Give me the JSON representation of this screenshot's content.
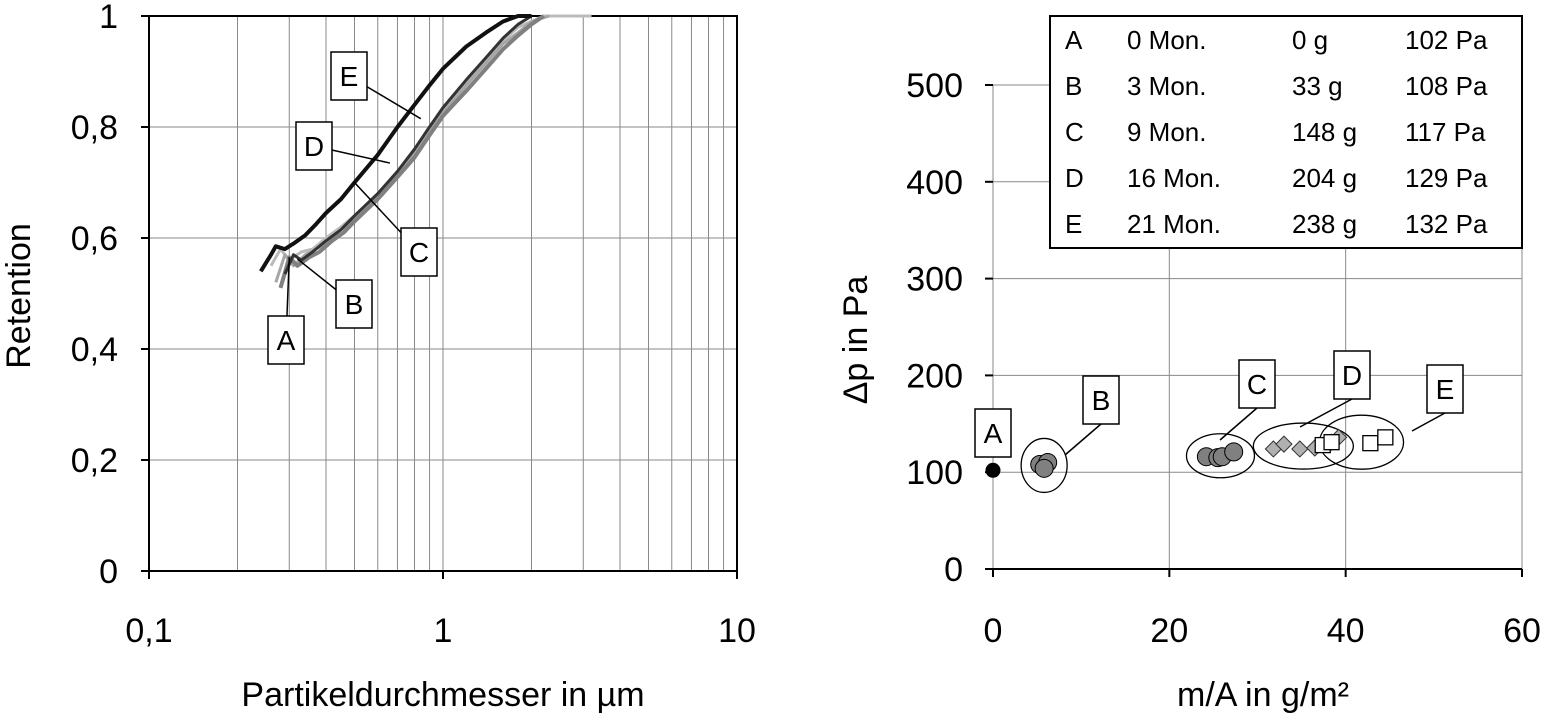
{
  "chart_data": [
    {
      "type": "line",
      "xlabel": "Partikeldurchmesser in µm",
      "ylabel": "Retention",
      "x_scale": "log",
      "xlim": [
        0.1,
        10
      ],
      "ylim": [
        0,
        1
      ],
      "grid": true,
      "x_tick_labels": [
        "0,1",
        "1",
        "10"
      ],
      "y_tick_labels": [
        "0",
        "0,2",
        "0,4",
        "0,6",
        "0,8",
        "1"
      ],
      "series": [
        {
          "label": "A",
          "color": "#bbbbbb",
          "width": 3,
          "x": [
            0.26,
            0.28,
            0.3,
            0.33,
            0.36,
            0.4,
            0.45,
            0.5,
            0.6,
            0.7,
            0.8,
            0.9,
            1.0,
            1.2,
            1.4,
            1.6,
            1.8,
            2.0,
            2.2,
            2.5,
            3.2
          ],
          "y": [
            0.55,
            0.58,
            0.56,
            0.575,
            0.58,
            0.6,
            0.62,
            0.64,
            0.68,
            0.72,
            0.76,
            0.8,
            0.83,
            0.88,
            0.92,
            0.955,
            0.98,
            0.99,
            1.0,
            1.0,
            1.0
          ]
        },
        {
          "label": "B",
          "color": "#a6a6a6",
          "width": 3,
          "x": [
            0.27,
            0.29,
            0.31,
            0.34,
            0.37,
            0.4,
            0.45,
            0.5,
            0.6,
            0.7,
            0.8,
            0.9,
            1.0,
            1.2,
            1.4,
            1.6,
            1.8,
            2.0,
            2.3
          ],
          "y": [
            0.52,
            0.57,
            0.55,
            0.57,
            0.58,
            0.59,
            0.615,
            0.635,
            0.675,
            0.715,
            0.755,
            0.795,
            0.825,
            0.875,
            0.915,
            0.95,
            0.97,
            0.99,
            1.0
          ]
        },
        {
          "label": "C",
          "color": "#808080",
          "width": 4,
          "x": [
            0.28,
            0.3,
            0.32,
            0.35,
            0.38,
            0.42,
            0.46,
            0.5,
            0.6,
            0.7,
            0.8,
            0.9,
            1.0,
            1.2,
            1.4,
            1.6,
            1.8,
            2.0,
            2.2
          ],
          "y": [
            0.51,
            0.565,
            0.55,
            0.565,
            0.575,
            0.595,
            0.61,
            0.63,
            0.67,
            0.71,
            0.745,
            0.785,
            0.82,
            0.865,
            0.905,
            0.94,
            0.965,
            0.985,
            1.0
          ]
        },
        {
          "label": "D",
          "color": "#333333",
          "width": 3,
          "x": [
            0.29,
            0.31,
            0.33,
            0.36,
            0.4,
            0.45,
            0.5,
            0.6,
            0.7,
            0.8,
            0.9,
            1.0,
            1.2,
            1.4,
            1.6,
            1.8,
            2.0
          ],
          "y": [
            0.535,
            0.57,
            0.56,
            0.575,
            0.595,
            0.615,
            0.64,
            0.68,
            0.72,
            0.76,
            0.8,
            0.835,
            0.885,
            0.925,
            0.96,
            0.985,
            1.0
          ]
        },
        {
          "label": "E",
          "color": "#111111",
          "width": 4,
          "x": [
            0.24,
            0.26,
            0.27,
            0.29,
            0.31,
            0.34,
            0.37,
            0.4,
            0.45,
            0.5,
            0.6,
            0.7,
            0.8,
            0.9,
            1.0,
            1.2,
            1.4,
            1.6,
            1.8,
            2.0
          ],
          "y": [
            0.54,
            0.57,
            0.585,
            0.58,
            0.59,
            0.605,
            0.625,
            0.645,
            0.67,
            0.7,
            0.75,
            0.8,
            0.84,
            0.875,
            0.905,
            0.945,
            0.97,
            0.99,
            1.0,
            1.0
          ]
        }
      ],
      "annotations": [
        {
          "label": "A",
          "x": 0.3,
          "y": 0.5654
        },
        {
          "label": "B",
          "x": 0.32,
          "y": 0.562
        },
        {
          "label": "C",
          "x": 0.5,
          "y": 0.7
        },
        {
          "label": "D",
          "x": 0.66,
          "y": 0.735
        },
        {
          "label": "E",
          "x": 0.84,
          "y": 0.815
        }
      ]
    },
    {
      "type": "scatter",
      "xlabel": "m/A in g/m²",
      "ylabel": "Δp in Pa",
      "xlim": [
        0,
        60
      ],
      "ylim": [
        0,
        500
      ],
      "grid": true,
      "x_tick_labels": [
        "0",
        "20",
        "40",
        "60"
      ],
      "y_tick_labels": [
        "0",
        "100",
        "200",
        "300",
        "400",
        "500"
      ],
      "series": [
        {
          "label": "A",
          "marker": "circle",
          "fill": "#000000",
          "size": "small",
          "points": [
            [
              0,
              102
            ]
          ]
        },
        {
          "label": "B",
          "marker": "circle",
          "fill": "#808080",
          "size": "large",
          "points": [
            [
              5.3,
              108
            ],
            [
              6.2,
              110
            ],
            [
              5.8,
              104
            ]
          ]
        },
        {
          "label": "C",
          "marker": "circle",
          "fill": "#808080",
          "size": "large",
          "points": [
            [
              24.2,
              116
            ],
            [
              25.5,
              115
            ],
            [
              26.0,
              116
            ],
            [
              27.3,
              121
            ]
          ]
        },
        {
          "label": "D",
          "marker": "diamond",
          "fill": "#b0b0b0",
          "points": [
            [
              31.8,
              124
            ],
            [
              33.0,
              129
            ],
            [
              34.8,
              124
            ],
            [
              36.5,
              125
            ],
            [
              38.4,
              131
            ],
            [
              39.2,
              136
            ]
          ]
        },
        {
          "label": "E",
          "marker": "square",
          "fill": "#ffffff",
          "points": [
            [
              37.4,
              128
            ],
            [
              38.4,
              131
            ],
            [
              42.8,
              130
            ],
            [
              44.5,
              136
            ]
          ]
        }
      ],
      "clusters": [
        {
          "label": "A",
          "x": 0,
          "y": 102
        },
        {
          "label": "B",
          "x": 5.8,
          "y": 107
        },
        {
          "label": "C",
          "x": 25.8,
          "y": 117
        },
        {
          "label": "D",
          "x": 35.2,
          "y": 127
        },
        {
          "label": "E",
          "x": 41.8,
          "y": 131
        }
      ],
      "legend": {
        "position": "top-right",
        "rows": [
          [
            "A",
            "0 Mon.",
            "0 g",
            "102 Pa"
          ],
          [
            "B",
            "3 Mon.",
            "33 g",
            "108 Pa"
          ],
          [
            "C",
            "9 Mon.",
            "148 g",
            "117 Pa"
          ],
          [
            "D",
            "16 Mon.",
            "204 g",
            "129 Pa"
          ],
          [
            "E",
            "21 Mon.",
            "238 g",
            "132 Pa"
          ]
        ]
      }
    }
  ]
}
